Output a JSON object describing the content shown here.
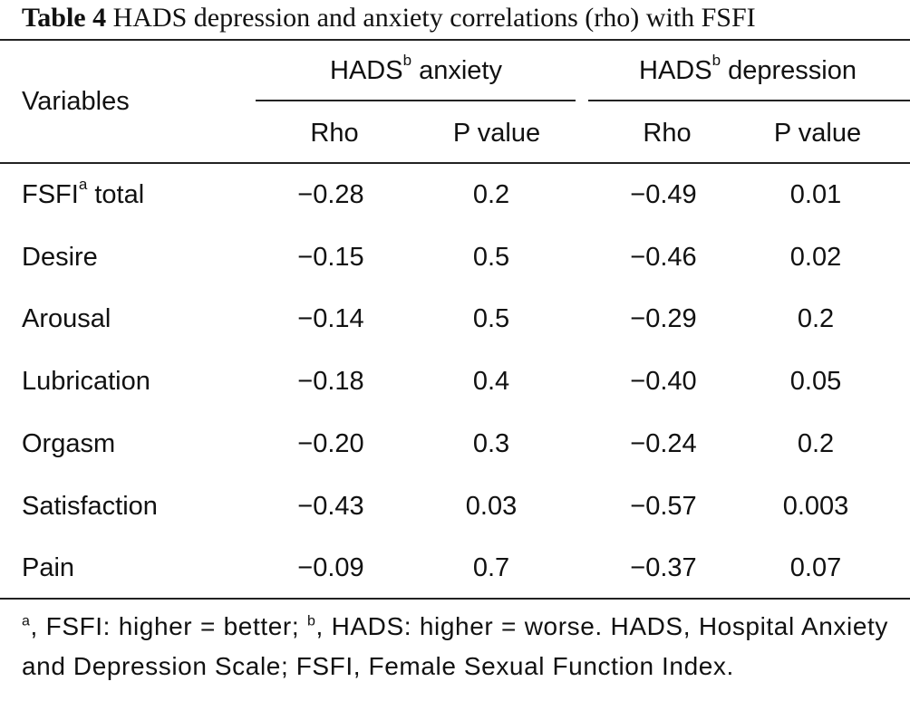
{
  "caption": {
    "label": "Table 4",
    "text": "HADS depression and anxiety correlations (rho) with FSFI"
  },
  "header": {
    "variables": "Variables",
    "anxiety_group": "HADS",
    "anxiety_group_sup": "b",
    "anxiety_group_suffix": " anxiety",
    "depression_group": "HADS",
    "depression_group_sup": "b",
    "depression_group_suffix": " depression",
    "rho": "Rho",
    "p_value": "P value"
  },
  "rows": [
    {
      "label": "FSFI",
      "sup": "a",
      "suffix": " total",
      "anx_rho": "−0.28",
      "anx_p": "0.2",
      "dep_rho": "−0.49",
      "dep_p": "0.01"
    },
    {
      "label": "Desire",
      "sup": "",
      "suffix": "",
      "anx_rho": "−0.15",
      "anx_p": "0.5",
      "dep_rho": "−0.46",
      "dep_p": "0.02"
    },
    {
      "label": "Arousal",
      "sup": "",
      "suffix": "",
      "anx_rho": "−0.14",
      "anx_p": "0.5",
      "dep_rho": "−0.29",
      "dep_p": "0.2"
    },
    {
      "label": "Lubrication",
      "sup": "",
      "suffix": "",
      "anx_rho": "−0.18",
      "anx_p": "0.4",
      "dep_rho": "−0.40",
      "dep_p": "0.05"
    },
    {
      "label": "Orgasm",
      "sup": "",
      "suffix": "",
      "anx_rho": "−0.20",
      "anx_p": "0.3",
      "dep_rho": "−0.24",
      "dep_p": "0.2"
    },
    {
      "label": "Satisfaction",
      "sup": "",
      "suffix": "",
      "anx_rho": "−0.43",
      "anx_p": "0.03",
      "dep_rho": "−0.57",
      "dep_p": "0.003"
    },
    {
      "label": "Pain",
      "sup": "",
      "suffix": "",
      "anx_rho": "−0.09",
      "anx_p": "0.7",
      "dep_rho": "−0.37",
      "dep_p": "0.07"
    }
  ],
  "footnote": {
    "sup_a": "a",
    "part1": ", FSFI: higher = better; ",
    "sup_b": "b",
    "part2": ", HADS: higher = worse. HADS, Hospital Anxiety and Depression Scale; FSFI, Female Sexual Function Index."
  }
}
